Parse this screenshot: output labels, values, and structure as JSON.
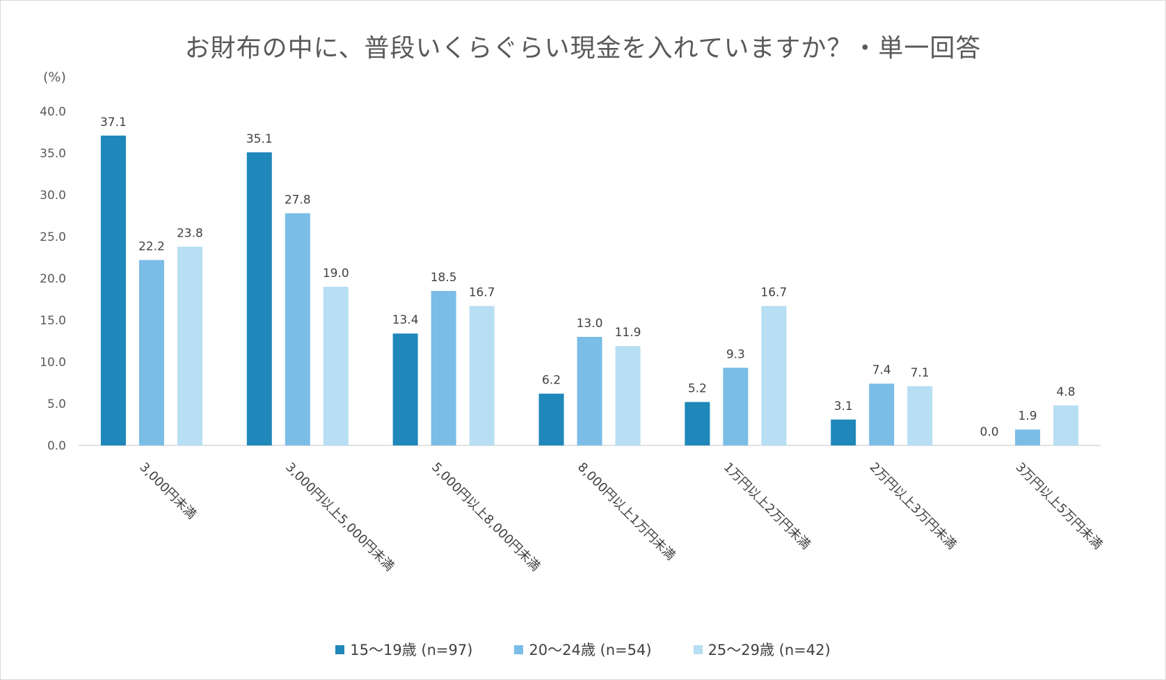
{
  "chart_data": {
    "type": "bar",
    "title": "お財布の中に、普段いくらぐらい現金を入れていますか？・単一回答",
    "ylabel": "(%)",
    "ylim": [
      0,
      40
    ],
    "yticks": [
      "0.0",
      "5.0",
      "10.0",
      "15.0",
      "20.0",
      "25.0",
      "30.0",
      "35.0",
      "40.0"
    ],
    "categories": [
      "3,000円未満",
      "3,000円以上5,000円未満",
      "5,000円以上8,000円未満",
      "8,000円以上1万円未満",
      "1万円以上2万円未満",
      "2万円以上3万円未満",
      "3万円以上5万円未満"
    ],
    "series": [
      {
        "name": "15〜19歳 (n=97)",
        "color": "#1f87b9",
        "values": [
          37.1,
          35.1,
          13.4,
          6.2,
          5.2,
          3.1,
          0.0
        ],
        "labels": [
          "37.1",
          "35.1",
          "13.4",
          "6.2",
          "5.2",
          "3.1",
          "0.0"
        ]
      },
      {
        "name": "20〜24歳 (n=54)",
        "color": "#7abde6",
        "values": [
          22.2,
          27.8,
          18.5,
          13.0,
          9.3,
          7.4,
          1.9
        ],
        "labels": [
          "22.2",
          "27.8",
          "18.5",
          "13.0",
          "9.3",
          "7.4",
          "1.9"
        ]
      },
      {
        "name": "25〜29歳 (n=42)",
        "color": "#b7def3",
        "values": [
          23.8,
          19.0,
          16.7,
          11.9,
          16.7,
          7.1,
          4.8
        ],
        "labels": [
          "23.8",
          "19.0",
          "16.7",
          "11.9",
          "16.7",
          "7.1",
          "4.8"
        ]
      }
    ],
    "grid": false,
    "legend_position": "bottom"
  }
}
